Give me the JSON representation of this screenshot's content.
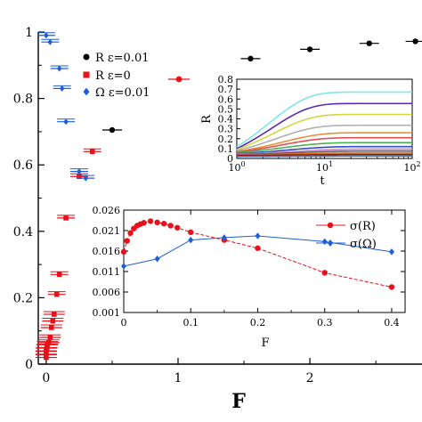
{
  "chart_data": [
    {
      "id": "main",
      "type": "scatter",
      "xlabel": "F",
      "ylabel": "",
      "xlim": [
        -0.06,
        2.85
      ],
      "ylim": [
        0,
        1.0
      ],
      "xticks": [
        0,
        1,
        2
      ],
      "yticks": [
        0,
        0.2,
        0.4,
        0.6,
        0.8,
        1
      ],
      "ytick_labels": [
        "0",
        "0.2",
        "0.4",
        "0.6",
        "0.8",
        "1"
      ],
      "series": [
        {
          "name": "R ε=0.01",
          "marker": "circle",
          "color": "#000000",
          "points": [
            {
              "x": 0.5,
              "y": 0.705
            },
            {
              "x": 1.55,
              "y": 0.92
            },
            {
              "x": 2.0,
              "y": 0.948
            },
            {
              "x": 2.45,
              "y": 0.966
            },
            {
              "x": 2.8,
              "y": 0.972
            }
          ]
        },
        {
          "name": "R ε=0",
          "marker": "square",
          "color": "#e8101a",
          "points": [
            {
              "x": 0.0,
              "y": 0.02
            },
            {
              "x": 0.0,
              "y": 0.03
            },
            {
              "x": 0.0,
              "y": 0.04
            },
            {
              "x": 0.005,
              "y": 0.05
            },
            {
              "x": 0.01,
              "y": 0.06
            },
            {
              "x": 0.02,
              "y": 0.065
            },
            {
              "x": 0.03,
              "y": 0.08
            },
            {
              "x": 0.04,
              "y": 0.11
            },
            {
              "x": 0.05,
              "y": 0.13
            },
            {
              "x": 0.06,
              "y": 0.15
            },
            {
              "x": 0.08,
              "y": 0.21
            },
            {
              "x": 0.1,
              "y": 0.27
            },
            {
              "x": 0.15,
              "y": 0.44
            },
            {
              "x": 0.25,
              "y": 0.565
            },
            {
              "x": 0.35,
              "y": 0.64
            }
          ]
        },
        {
          "name": "Ω ε=0.01",
          "marker": "diamond",
          "color": "#1f5fd6",
          "points": [
            {
              "x": 0.0,
              "y": 0.99
            },
            {
              "x": 0.03,
              "y": 0.97
            },
            {
              "x": 0.1,
              "y": 0.89
            },
            {
              "x": 0.12,
              "y": 0.83
            },
            {
              "x": 0.15,
              "y": 0.73
            },
            {
              "x": 0.25,
              "y": 0.58
            },
            {
              "x": 0.3,
              "y": 0.56
            }
          ]
        }
      ]
    },
    {
      "id": "inset-top",
      "type": "line",
      "xlabel": "t",
      "ylabel": "R",
      "xscale": "log",
      "xlim": [
        1,
        100
      ],
      "ylim": [
        0,
        0.8
      ],
      "xticks": [
        1,
        10,
        100
      ],
      "xtick_labels": [
        [
          "10",
          "0"
        ],
        [
          "10",
          "1"
        ],
        [
          "10",
          "2"
        ]
      ],
      "yticks": [
        0,
        0.1,
        0.2,
        0.3,
        0.4,
        0.5,
        0.6,
        0.7,
        0.8
      ],
      "ytick_labels": [
        "0",
        "0.1",
        "0.2",
        "0.3",
        "0.4",
        "0.5",
        "0.6",
        "0.7",
        "0.8"
      ],
      "series": [
        {
          "color": "#7fe6e6",
          "start": 0.12,
          "plateau": 0.67,
          "rise": 0.42
        },
        {
          "color": "#5a2bb0",
          "start": 0.1,
          "plateau": 0.555,
          "rise": 0.4
        },
        {
          "color": "#d6d640",
          "start": 0.09,
          "plateau": 0.445,
          "rise": 0.38
        },
        {
          "color": "#b0b0b0",
          "start": 0.08,
          "plateau": 0.335,
          "rise": 0.35
        },
        {
          "color": "#e89040",
          "start": 0.07,
          "plateau": 0.26,
          "rise": 0.3
        },
        {
          "color": "#e05050",
          "start": 0.065,
          "plateau": 0.21,
          "rise": 0.3
        },
        {
          "color": "#4fb04f",
          "start": 0.06,
          "plateau": 0.16,
          "rise": 0.28
        },
        {
          "color": "#3050c0",
          "start": 0.05,
          "plateau": 0.12,
          "rise": 0.25
        },
        {
          "color": "#d080d0",
          "start": 0.045,
          "plateau": 0.095,
          "rise": 0.2
        },
        {
          "color": "#606060",
          "start": 0.04,
          "plateau": 0.075,
          "rise": 0.2
        },
        {
          "color": "#e07000",
          "start": 0.035,
          "plateau": 0.055,
          "rise": 0.2
        },
        {
          "color": "#a01010",
          "start": 0.03,
          "plateau": 0.04,
          "rise": 0.2
        },
        {
          "color": "#2080c0",
          "start": 0.02,
          "plateau": 0.025,
          "rise": 0.2
        }
      ]
    },
    {
      "id": "inset-bottom",
      "type": "line",
      "xlabel": "F",
      "ylabel": "",
      "xlim": [
        0,
        0.42
      ],
      "ylim": [
        0.001,
        0.026
      ],
      "xticks": [
        0,
        0.1,
        0.2,
        0.3,
        0.4
      ],
      "xtick_labels": [
        "0",
        "0.1",
        "0.2",
        "0.3",
        "0.4"
      ],
      "yticks": [
        0.001,
        0.006,
        0.011,
        0.016,
        0.021,
        0.026
      ],
      "ytick_labels": [
        "0.001",
        "0.006",
        "0.011",
        "0.016",
        "0.021",
        "0.026"
      ],
      "series": [
        {
          "name": "σ(R)",
          "marker": "circle",
          "color": "#e8101a",
          "points": [
            {
              "x": 0.0,
              "y": 0.0158
            },
            {
              "x": 0.005,
              "y": 0.0185
            },
            {
              "x": 0.01,
              "y": 0.0204
            },
            {
              "x": 0.015,
              "y": 0.0215
            },
            {
              "x": 0.02,
              "y": 0.0222
            },
            {
              "x": 0.025,
              "y": 0.0226
            },
            {
              "x": 0.03,
              "y": 0.0229
            },
            {
              "x": 0.04,
              "y": 0.0233
            },
            {
              "x": 0.05,
              "y": 0.023
            },
            {
              "x": 0.06,
              "y": 0.0227
            },
            {
              "x": 0.07,
              "y": 0.0222
            },
            {
              "x": 0.08,
              "y": 0.0217
            },
            {
              "x": 0.1,
              "y": 0.0206
            },
            {
              "x": 0.15,
              "y": 0.0187
            },
            {
              "x": 0.2,
              "y": 0.0167
            },
            {
              "x": 0.3,
              "y": 0.0107
            },
            {
              "x": 0.4,
              "y": 0.0072
            }
          ]
        },
        {
          "name": "σ(Ω)",
          "marker": "diamond",
          "color": "#1f5fd6",
          "points": [
            {
              "x": 0.0,
              "y": 0.0123
            },
            {
              "x": 0.05,
              "y": 0.0141
            },
            {
              "x": 0.1,
              "y": 0.0187
            },
            {
              "x": 0.15,
              "y": 0.0193
            },
            {
              "x": 0.2,
              "y": 0.0197
            },
            {
              "x": 0.3,
              "y": 0.0183
            },
            {
              "x": 0.4,
              "y": 0.0158
            }
          ]
        }
      ]
    }
  ]
}
